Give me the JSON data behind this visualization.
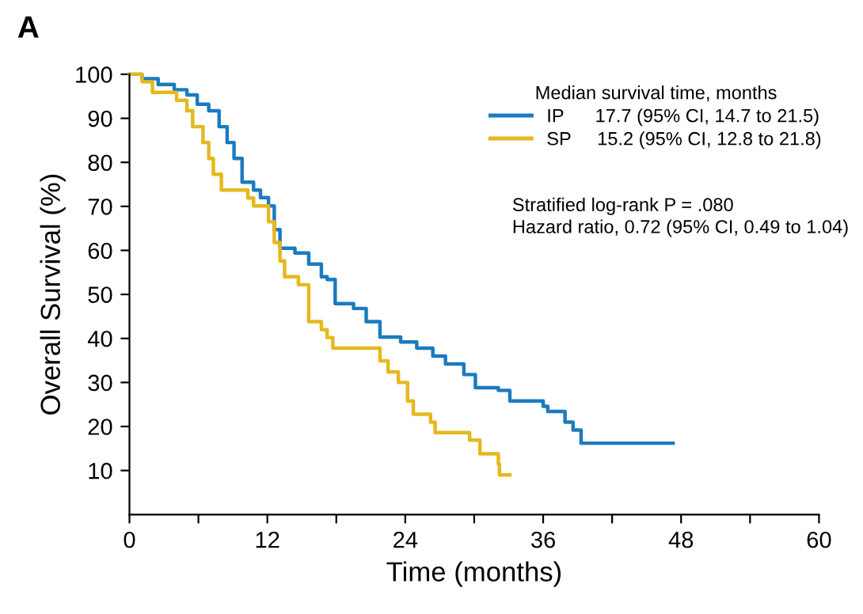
{
  "chart_data": {
    "type": "step",
    "title": "A",
    "xlabel": "Time (months)",
    "ylabel": "Overall Survival (%)",
    "legend_title": "Median survival time, months",
    "xlim": [
      0,
      60
    ],
    "xticks": [
      0,
      {
        "value": 6,
        "label": null
      },
      12,
      {
        "value": 18,
        "label": null
      },
      24,
      {
        "value": 30,
        "label": null
      },
      36,
      {
        "value": 42,
        "label": null
      },
      48,
      {
        "value": 54,
        "label": null
      },
      60
    ],
    "ylim": [
      0,
      100
    ],
    "yticks": [
      10,
      20,
      30,
      40,
      50,
      60,
      70,
      80,
      90,
      100
    ],
    "grid": false,
    "legend": "top right",
    "marker": "none",
    "line_style": "solid",
    "annotations": [
      "Stratified log-rank P = .080",
      "Hazard ratio, 0.72 (95% CI, 0.49 to 1.04)"
    ],
    "series": [
      {
        "name": "IP      17.7 (95% CI, 14.7 to 21.5)",
        "color": "#1a7bbf",
        "x": [
          0,
          1.1,
          2.5,
          3.9,
          5.0,
          5.9,
          6.9,
          7.8,
          8.5,
          9.1,
          9.8,
          10.8,
          11.4,
          12.1,
          12.6,
          13.1,
          14.4,
          15.6,
          16.7,
          17.2,
          17.9,
          19.5,
          20.6,
          21.8,
          23.6,
          25,
          26.4,
          27.5,
          29.1,
          30.1,
          32.1,
          33.1,
          36,
          36.4,
          37.9,
          38.6,
          39.3,
          47.3
        ],
        "values": [
          100,
          99,
          97.7,
          96.5,
          95.3,
          93.2,
          91.7,
          88.1,
          84.5,
          80.9,
          75.5,
          73.7,
          72,
          70.1,
          64.7,
          60.5,
          59.4,
          56.9,
          54,
          53.4,
          47.9,
          46.8,
          43.8,
          40.3,
          39.2,
          37.8,
          36,
          34.2,
          31.8,
          28.8,
          28.2,
          25.8,
          24.6,
          23.4,
          21,
          19.2,
          16.2,
          16.2
        ]
      },
      {
        "name": "SP     15.2 (95% CI, 12.8 to 21.8)",
        "color": "#e6b81e",
        "x": [
          0,
          1.1,
          2.0,
          4.1,
          5.0,
          5.5,
          6.4,
          6.9,
          7.3,
          8.0,
          10.3,
          10.8,
          12.1,
          12.6,
          13.1,
          13.5,
          14.7,
          15.6,
          16.7,
          17.2,
          17.7,
          21.8,
          22.5,
          23.4,
          24.2,
          24.7,
          26.2,
          26.6,
          29.6,
          30.5,
          32.1,
          32.2,
          33.1
        ],
        "values": [
          100,
          98.3,
          95.9,
          94.1,
          91.7,
          88.1,
          84.5,
          80.9,
          77.3,
          73.7,
          71.9,
          70.1,
          66.5,
          61.8,
          57.6,
          54,
          52.2,
          43.8,
          42,
          40.2,
          37.8,
          34.9,
          32.4,
          30,
          25.8,
          22.8,
          21,
          18.6,
          16.9,
          13.8,
          11.5,
          9,
          9
        ]
      }
    ]
  }
}
